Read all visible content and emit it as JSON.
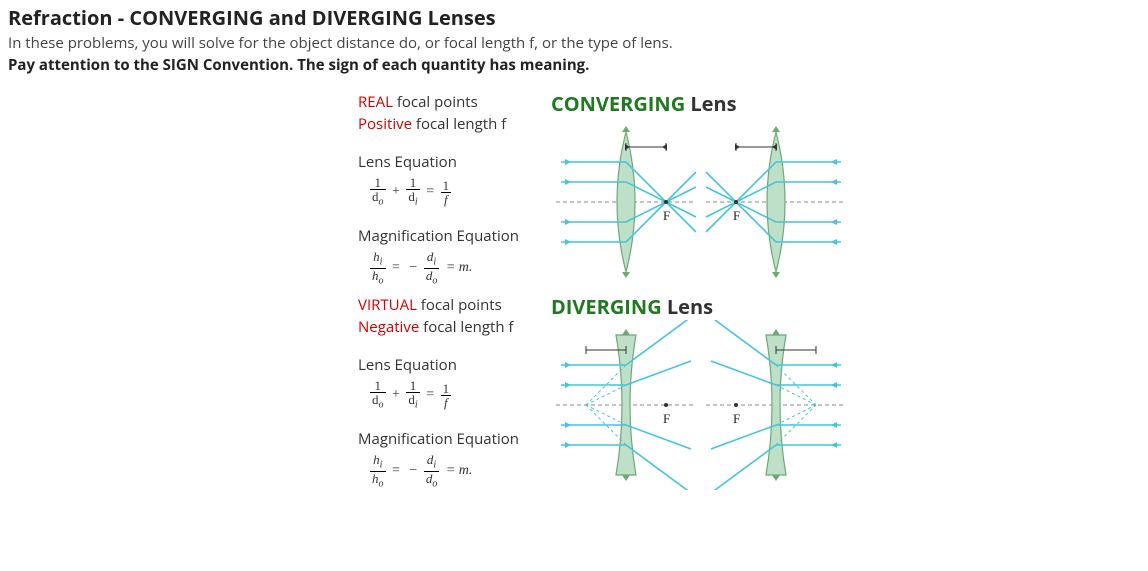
{
  "header": {
    "title": "Refraction - CONVERGING and DIVERGING Lenses",
    "intro": "In these problems, you will solve for the object distance do, or focal length f, or the type of lens.",
    "emph": "Pay attention to the SIGN Convention. The sign of each quantity has meaning."
  },
  "converging": {
    "title_left": "CONVERGING",
    "title_right": " Lens",
    "fp_word": "REAL",
    "fp_rest": " focal points",
    "fl_word": "Positive",
    "fl_rest": " focal length f",
    "lens_eq_label": "Lens Equation",
    "mag_eq_label": "Magnification Equation",
    "diagram": {
      "lens_fill": "#bfe0c8",
      "lens_stroke": "#6fa874",
      "axis_color": "#888888",
      "ray_color": "#44c5d9",
      "arrow_color": "#333333",
      "label_F": "F",
      "convex": true
    }
  },
  "diverging": {
    "title_left": "DIVERGING",
    "title_right": " Lens",
    "fp_word": "VIRTUAL",
    "fp_rest": " focal points",
    "fl_word": "Negative",
    "fl_rest": " focal length f",
    "lens_eq_label": "Lens Equation",
    "mag_eq_label": "Magnification Equation",
    "diagram": {
      "lens_fill": "#bfe0c8",
      "lens_stroke": "#6fa874",
      "axis_color": "#888888",
      "ray_color": "#44c5d9",
      "dashed_color": "#44c5d9",
      "arrow_color": "#333333",
      "label_F": "F",
      "convex": false
    }
  },
  "equations": {
    "lens": {
      "num1": "1",
      "den1": "d",
      "sub1": "o",
      "op1": "+",
      "num2": "1",
      "den2": "d",
      "sub2": "i",
      "eq": "=",
      "num3": "1",
      "den3": "f"
    },
    "mag": {
      "numL": "h",
      "subL": "i",
      "denL": "h",
      "subL2": "o",
      "eq": "=",
      "neg": "−",
      "numR": "d",
      "subR": "i",
      "denR": "d",
      "subR2": "o",
      "tail": " = m."
    }
  },
  "style": {
    "red": "#d40000",
    "green": "#1f7a1f",
    "text": "#333333",
    "background": "#ffffff",
    "title_fontsize": 20,
    "body_fontsize": 15,
    "eq_fontsize": 14
  }
}
